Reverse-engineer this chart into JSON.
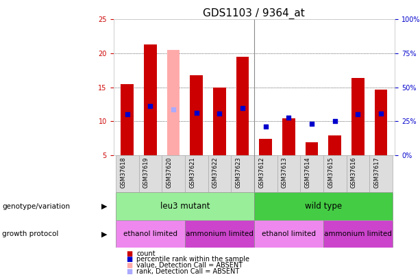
{
  "title": "GDS1103 / 9364_at",
  "samples": [
    "GSM37618",
    "GSM37619",
    "GSM37620",
    "GSM37621",
    "GSM37622",
    "GSM37623",
    "GSM37612",
    "GSM37613",
    "GSM37614",
    "GSM37615",
    "GSM37616",
    "GSM37617"
  ],
  "count_values": [
    15.5,
    21.3,
    20.5,
    16.8,
    15.0,
    19.5,
    7.4,
    10.4,
    6.9,
    7.9,
    16.4,
    14.7
  ],
  "rank_values": [
    11.0,
    12.2,
    11.7,
    11.2,
    11.1,
    11.9,
    9.2,
    10.5,
    9.6,
    10.0,
    11.0,
    11.1
  ],
  "absent_flags": [
    false,
    false,
    true,
    false,
    false,
    false,
    false,
    false,
    false,
    false,
    false,
    false
  ],
  "ylim_left": [
    5,
    25
  ],
  "ylim_right": [
    0,
    100
  ],
  "left_yticks": [
    5,
    10,
    15,
    20,
    25
  ],
  "right_yticks": [
    0,
    25,
    50,
    75,
    100
  ],
  "right_yticklabels": [
    "0%",
    "25%",
    "50%",
    "75%",
    "100%"
  ],
  "bar_color_normal": "#cc0000",
  "bar_color_absent": "#ffaaaa",
  "rank_color_normal": "#0000cc",
  "rank_color_absent": "#aaaaff",
  "bar_width": 0.55,
  "rank_marker_size": 20,
  "genotype_leu3": "leu3 mutant",
  "genotype_wild": "wild type",
  "genotype_leu3_color": "#99ee99",
  "genotype_wild_color": "#44cc44",
  "growth_ethanol_color": "#ee88ee",
  "growth_ammonium_color": "#cc44cc",
  "growth_protocols": [
    "ethanol limited",
    "ammonium limited",
    "ethanol limited",
    "ammonium limited"
  ],
  "growth_sample_ranges": [
    [
      0,
      2
    ],
    [
      3,
      5
    ],
    [
      6,
      8
    ],
    [
      9,
      11
    ]
  ],
  "separator_col": 5,
  "left_label_color": "#cc0000",
  "right_label_color": "#0000cc",
  "title_fontsize": 11,
  "tick_fontsize": 7,
  "legend_fontsize": 7.5
}
